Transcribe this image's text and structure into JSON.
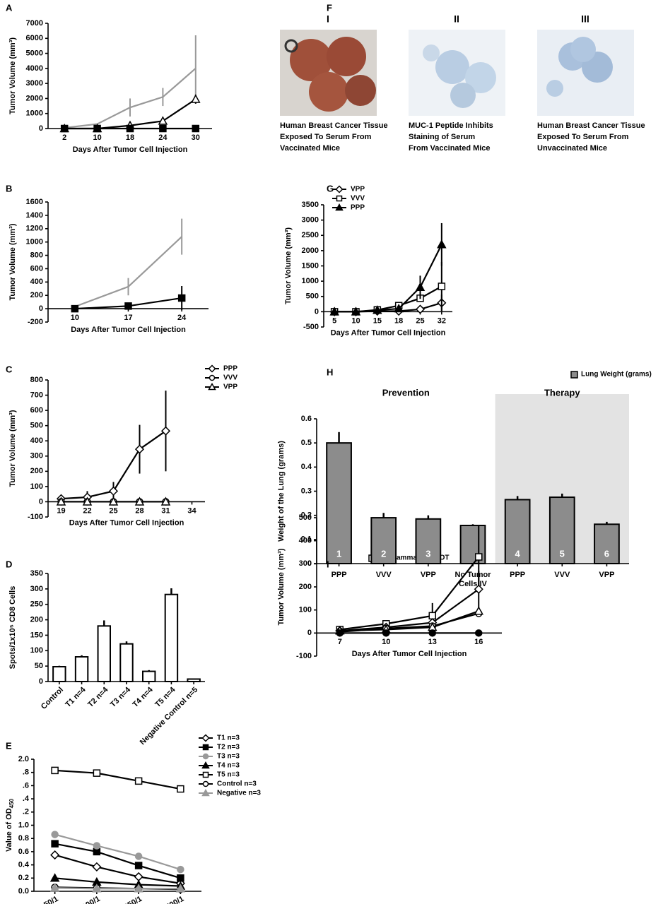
{
  "chart_data": [
    {
      "label": "A",
      "type": "line",
      "xlabel": "Days After Tumor Cell Injection",
      "ylabel": "Tumor Volume (mm³)",
      "categories": [
        "2",
        "10",
        "18",
        "24",
        "30"
      ],
      "ylim": [
        0,
        7000
      ],
      "yticks": [
        0,
        1000,
        2000,
        3000,
        4000,
        5000,
        6000,
        7000
      ],
      "series": [
        {
          "color": "#999999",
          "marker": "none",
          "marker_fill": "#999999",
          "values": [
            50,
            300,
            1400,
            2100,
            4000
          ],
          "errors": [
            null,
            null,
            600,
            600,
            2200
          ]
        },
        {
          "color": "#000000",
          "marker": "triangle",
          "marker_fill": "#ffffff",
          "values": [
            0,
            0,
            200,
            500,
            1950
          ],
          "errors": [
            null,
            null,
            null,
            null,
            300
          ]
        },
        {
          "color": "#000000",
          "marker": "square",
          "marker_fill": "#000000",
          "values": [
            0,
            0,
            0,
            0,
            0
          ]
        }
      ]
    },
    {
      "label": "B",
      "type": "line",
      "xlabel": "Days After Tumor Cell Injection",
      "ylabel": "Tumor Volume (mm³)",
      "categories": [
        "10",
        "17",
        "24"
      ],
      "ylim": [
        -200,
        1600
      ],
      "yticks": [
        -200,
        0,
        200,
        400,
        600,
        800,
        1000,
        1200,
        1400,
        1600
      ],
      "series": [
        {
          "color": "#999999",
          "marker": "none",
          "marker_fill": "#999999",
          "values": [
            30,
            330,
            1080
          ],
          "errors": [
            null,
            130,
            270
          ]
        },
        {
          "color": "#000000",
          "marker": "square",
          "marker_fill": "#000000",
          "values": [
            0,
            40,
            160
          ],
          "errors": [
            null,
            null,
            180
          ]
        }
      ]
    },
    {
      "label": "C",
      "type": "line",
      "xlabel": "Days After Tumor Cell Injection",
      "ylabel": "Tumor Volume (mm³)",
      "legend": "top-right",
      "categories": [
        "19",
        "22",
        "25",
        "28",
        "31",
        "34"
      ],
      "ylim": [
        -100,
        800
      ],
      "yticks": [
        -100,
        0,
        100,
        200,
        300,
        400,
        500,
        600,
        700,
        800
      ],
      "series": [
        {
          "name": "PPP",
          "color": "#000000",
          "marker": "diamond",
          "marker_fill": "#ffffff",
          "values": [
            20,
            30,
            70,
            345,
            465,
            null
          ],
          "errors": [
            20,
            40,
            60,
            160,
            265,
            null
          ]
        },
        {
          "name": "VVV",
          "color": "#000000",
          "marker": "circle",
          "marker_fill": "#ffffff",
          "values": [
            0,
            0,
            0,
            0,
            0,
            null
          ]
        },
        {
          "name": "VPP",
          "color": "#000000",
          "marker": "triangle",
          "marker_fill": "#ffffff",
          "values": [
            0,
            0,
            0,
            0,
            0,
            null
          ]
        }
      ]
    },
    {
      "label": "D",
      "type": "bar",
      "ylabel": "Spots/1x10⁵ CD8 Cells",
      "legend": "top-right",
      "categories": [
        "Control",
        "T1 n=4",
        "T2 n=4",
        "T3 n=4",
        "T4 n=4",
        "T5 n=4",
        "Negative Control n=5"
      ],
      "ylim": [
        0,
        350
      ],
      "yticks": [
        0,
        50,
        100,
        150,
        200,
        250,
        300,
        350
      ],
      "series": [
        {
          "name": "IFN gamma ELISPOT",
          "color": "#ffffff",
          "values": [
            48,
            80,
            180,
            122,
            33,
            282,
            8
          ],
          "errors": [
            3,
            5,
            18,
            8,
            4,
            20,
            2
          ]
        }
      ]
    },
    {
      "label": "E",
      "type": "line",
      "ylabel": "Value of OD",
      "ylabel_subscript": "450",
      "legend": "top-right",
      "categories": [
        "50/1",
        "100/1",
        "250/1",
        "500/1"
      ],
      "ylim": [
        0,
        2.0
      ],
      "yticks": [
        {
          "value": 0,
          "label": "0.0"
        },
        0.2,
        0.4,
        0.6,
        0.8,
        {
          "value": 1.0,
          "label": "1.0"
        },
        {
          "value": 1.2,
          "label": ".2"
        },
        {
          "value": 1.4,
          "label": ".4"
        },
        {
          "value": 1.6,
          "label": ".6"
        },
        {
          "value": 1.8,
          "label": ".8"
        },
        {
          "value": 2.0,
          "label": "2.0"
        }
      ],
      "series": [
        {
          "name": "T1 n=3",
          "color": "#000000",
          "marker": "diamond",
          "marker_fill": "#ffffff",
          "values": [
            0.55,
            0.37,
            0.22,
            0.12
          ]
        },
        {
          "name": "T2 n=3",
          "color": "#000000",
          "marker": "square",
          "marker_fill": "#000000",
          "values": [
            0.72,
            0.6,
            0.39,
            0.2
          ]
        },
        {
          "name": "T3 n=3",
          "color": "#999999",
          "marker": "circle",
          "marker_fill": "#999999",
          "values": [
            0.86,
            0.69,
            0.53,
            0.33
          ]
        },
        {
          "name": "T4 n=3",
          "color": "#000000",
          "marker": "triangle",
          "marker_fill": "#000000",
          "values": [
            0.2,
            0.14,
            0.1,
            0.08
          ]
        },
        {
          "name": "T5 n=3",
          "color": "#000000",
          "marker": "square",
          "marker_fill": "#ffffff",
          "values": [
            1.83,
            1.79,
            1.67,
            1.55
          ]
        },
        {
          "name": "Control n=3",
          "color": "#000000",
          "marker": "circle",
          "marker_fill": "#ffffff",
          "values": [
            0.06,
            0.05,
            0.04,
            0.03
          ]
        },
        {
          "name": "Negative n=3",
          "color": "#999999",
          "marker": "triangle",
          "marker_fill": "#999999",
          "values": [
            0.05,
            0.04,
            0.04,
            0.04
          ]
        }
      ]
    },
    {
      "label": "G",
      "type": "line",
      "xlabel": "Days After Tumor Cell Injection",
      "ylabel": "Tumor Volume (mm³)",
      "legend": "top-left",
      "categories": [
        "5",
        "10",
        "15",
        "18",
        "25",
        "32"
      ],
      "ylim": [
        -500,
        3500
      ],
      "yticks": [
        -500,
        0,
        500,
        1000,
        1500,
        2000,
        2500,
        3000,
        3500
      ],
      "series": [
        {
          "name": "VPP",
          "color": "#000000",
          "marker": "diamond",
          "marker_fill": "#ffffff",
          "values": [
            0,
            0,
            20,
            20,
            80,
            290
          ],
          "errors": [
            null,
            null,
            null,
            null,
            null,
            270
          ]
        },
        {
          "name": "VVV",
          "color": "#000000",
          "marker": "square",
          "marker_fill": "#ffffff",
          "values": [
            0,
            0,
            60,
            200,
            440,
            830
          ],
          "errors": [
            null,
            null,
            null,
            null,
            null,
            800
          ]
        },
        {
          "name": "PPP",
          "color": "#000000",
          "marker": "triangle",
          "marker_fill": "#000000",
          "values": [
            0,
            0,
            50,
            100,
            800,
            2200
          ],
          "errors": [
            null,
            null,
            null,
            null,
            380,
            700
          ]
        }
      ]
    },
    {
      "label": "H",
      "type": "bar",
      "ylabel": "Weight of the Lung (grams)",
      "legend": "top-right",
      "groups": [
        "Prevention",
        "Therapy"
      ],
      "shade_color": "#e3e3e3",
      "categories": [
        "PPP",
        "VVV",
        "VPP",
        [
          "No Tumor",
          "Cells IV"
        ],
        "PPP",
        "VVV",
        "VPP"
      ],
      "bar_numbers": [
        "1",
        "2",
        "3",
        null,
        "4",
        "5",
        "6"
      ],
      "ylim": [
        0,
        0.6
      ],
      "yticks": [
        0,
        0.1,
        0.2,
        0.3,
        0.4,
        0.5,
        0.6
      ],
      "series": [
        {
          "name": "Lung Weight (grams)",
          "color": "#8c8c8c",
          "values": [
            0.5,
            0.19,
            0.185,
            0.158,
            0.265,
            0.275,
            0.163
          ],
          "errors": [
            0.045,
            0.02,
            0.015,
            0.005,
            0.015,
            0.015,
            0.01
          ]
        }
      ]
    },
    {
      "label": "I",
      "type": "line",
      "xlabel": "Days After Tumor Cell Injection",
      "ylabel": "Tumor Volume (mm³)",
      "categories": [
        "7",
        "10",
        "13",
        "16"
      ],
      "ylim": [
        -100,
        500
      ],
      "yticks": [
        -100,
        0,
        100,
        200,
        300,
        400,
        500
      ],
      "series": [
        {
          "color": "#000000",
          "marker": "square",
          "marker_fill": "#ffffff",
          "values": [
            15,
            40,
            75,
            330
          ],
          "errors": [
            null,
            null,
            55,
            135
          ]
        },
        {
          "color": "#000000",
          "marker": "diamond",
          "marker_fill": "#ffffff",
          "values": [
            10,
            25,
            45,
            190
          ],
          "errors": [
            null,
            null,
            null,
            80
          ]
        },
        {
          "color": "#000000",
          "marker": "circle",
          "marker_fill": "#ffffff",
          "values": [
            5,
            20,
            30,
            85
          ]
        },
        {
          "color": "#000000",
          "marker": "triangle",
          "marker_fill": "#ffffff",
          "values": [
            10,
            15,
            25,
            95
          ]
        },
        {
          "color": "#000000",
          "marker": "circle",
          "marker_fill": "#000000",
          "values": [
            0,
            0,
            0,
            0
          ]
        }
      ]
    }
  ],
  "panel_f": {
    "label": "F",
    "panels": [
      {
        "numeral": "I",
        "caption": [
          "Human Breast Cancer Tissue",
          "Exposed To Serum From",
          "Vaccinated Mice"
        ]
      },
      {
        "numeral": "II",
        "caption": [
          "MUC-1 Peptide Inhibits",
          "Staining of Serum",
          "From Vaccinated Mice"
        ]
      },
      {
        "numeral": "III",
        "caption": [
          "Human Breast Cancer Tissue",
          "Exposed To Serum From",
          "Unvaccinated Mice"
        ]
      }
    ]
  }
}
